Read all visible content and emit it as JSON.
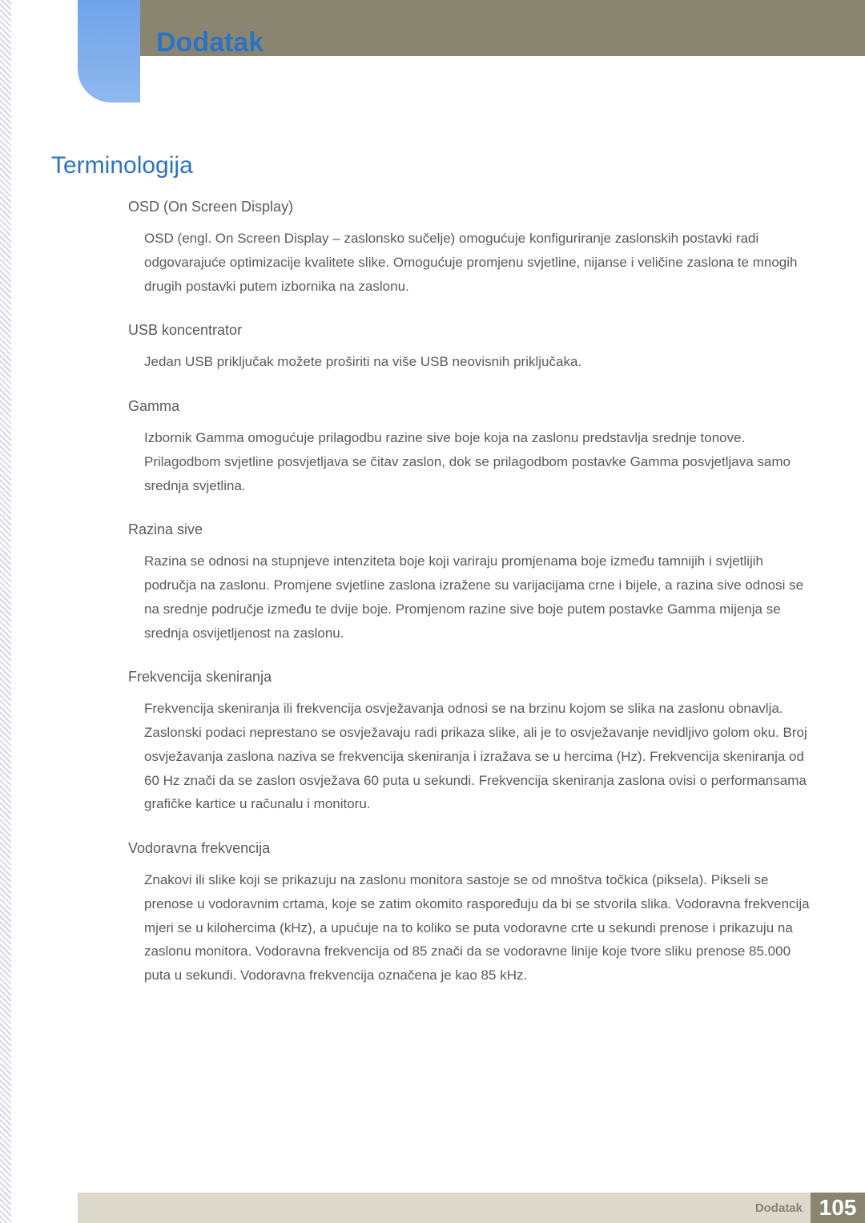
{
  "header": {
    "chapter_title": "Dodatak",
    "section_title": "Terminologija",
    "tab_gradient_top": "#6fa3ea",
    "tab_gradient_bottom": "#8fb8ee",
    "top_bar_color": "#8a8570",
    "title_color": "#2d73c4"
  },
  "terms": [
    {
      "heading": "OSD (On Screen Display)",
      "body": "OSD (engl. On Screen Display – zaslonsko sučelje) omogućuje konfiguriranje zaslonskih postavki radi odgovarajuće optimizacije kvalitete slike. Omogućuje promjenu svjetline, nijanse i veličine zaslona te mnogih drugih postavki putem izbornika na zaslonu."
    },
    {
      "heading": "USB koncentrator",
      "body": "Jedan USB priključak možete proširiti na više USB neovisnih priključaka."
    },
    {
      "heading": "Gamma",
      "body": "Izbornik Gamma omogućuje prilagodbu razine sive boje koja na zaslonu predstavlja srednje tonove. Prilagodbom svjetline posvjetljava se čitav zaslon, dok se prilagodbom postavke Gamma posvjetljava samo srednja svjetlina."
    },
    {
      "heading": "Razina sive",
      "body": "Razina se odnosi na stupnjeve intenziteta boje koji variraju promjenama boje između tamnijih i svjetlijih područja na zaslonu. Promjene svjetline zaslona izražene su varijacijama crne i bijele, a razina sive odnosi se na srednje područje između te dvije boje. Promjenom razine sive boje putem postavke Gamma mijenja se srednja osvijetljenost na zaslonu."
    },
    {
      "heading": "Frekvencija skeniranja",
      "body": "Frekvencija skeniranja ili frekvencija osvježavanja odnosi se na brzinu kojom se slika na zaslonu obnavlja. Zaslonski podaci neprestano se osvježavaju radi prikaza slike, ali je to osvježavanje nevidljivo golom oku. Broj osvježavanja zaslona naziva se frekvencija skeniranja i izražava se u hercima (Hz). Frekvencija skeniranja od 60 Hz znači da se zaslon osvježava 60 puta u sekundi. Frekvencija skeniranja zaslona ovisi o performansama grafičke kartice u računalu i monitoru."
    },
    {
      "heading": "Vodoravna frekvencija",
      "body": "Znakovi ili slike koji se prikazuju na zaslonu monitora sastoje se od mnoštva točkica (piksela). Pikseli se prenose u vodoravnim crtama, koje se zatim okomito raspoređuju da bi se stvorila slika. Vodoravna frekvencija mjeri se u kilohercima (kHz), a upućuje na to koliko se puta vodoravne crte u sekundi prenose i prikazuju na zaslonu monitora. Vodoravna frekvencija od 85 znači da se vodoravne linije koje tvore sliku prenose 85.000 puta u sekundi. Vodoravna frekvencija označena je kao 85 kHz."
    }
  ],
  "footer": {
    "label": "Dodatak",
    "page_number": "105",
    "bar_color": "#dcd8cc",
    "box_color": "#8a8570",
    "text_color": "#8a8570"
  },
  "typography": {
    "body_color": "#5a5a5a",
    "chapter_title_fontsize": 34,
    "section_title_fontsize": 30,
    "heading_fontsize": 18,
    "body_fontsize": 17
  }
}
